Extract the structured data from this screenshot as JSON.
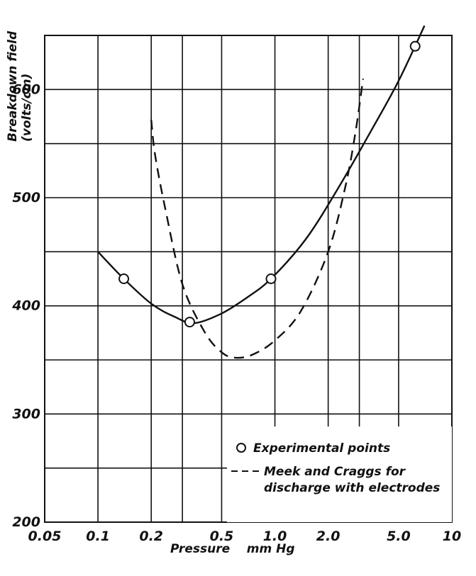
{
  "chart_data": {
    "type": "line",
    "xscale": "log",
    "xlim": [
      0.05,
      10
    ],
    "ylim": [
      200,
      650
    ],
    "grid": true,
    "xlabel": "Pressure    mm Hg",
    "ylabel": "Breakdown field\n(volts/cm)",
    "x_ticks": [
      {
        "value": 0.05,
        "label": "0.05"
      },
      {
        "value": 0.1,
        "label": "0.1"
      },
      {
        "value": 0.2,
        "label": "0.2"
      },
      {
        "value": 0.5,
        "label": "0.5"
      },
      {
        "value": 1.0,
        "label": "1.0"
      },
      {
        "value": 2.0,
        "label": "2.0"
      },
      {
        "value": 5.0,
        "label": "5.0"
      },
      {
        "value": 10,
        "label": "10"
      }
    ],
    "x_gridlines": [
      0.05,
      0.1,
      0.2,
      0.3,
      0.5,
      1.0,
      2.0,
      3.0,
      5.0,
      10
    ],
    "y_ticks": [
      {
        "value": 200,
        "label": "200"
      },
      {
        "value": 300,
        "label": "300"
      },
      {
        "value": 400,
        "label": "400"
      },
      {
        "value": 500,
        "label": "500"
      },
      {
        "value": 600,
        "label": "600"
      }
    ],
    "y_gridlines": [
      200,
      250,
      300,
      350,
      400,
      450,
      500,
      550,
      600,
      650
    ],
    "series": [
      {
        "name": "Experimental points",
        "style": "markers",
        "points": [
          {
            "x": 0.14,
            "y": 425
          },
          {
            "x": 0.33,
            "y": 385
          },
          {
            "x": 0.95,
            "y": 425
          },
          {
            "x": 6.2,
            "y": 640
          }
        ]
      },
      {
        "name": "Experimental points",
        "style": "solid-curve",
        "points": [
          {
            "x": 0.1,
            "y": 450
          },
          {
            "x": 0.14,
            "y": 425
          },
          {
            "x": 0.2,
            "y": 402
          },
          {
            "x": 0.27,
            "y": 390
          },
          {
            "x": 0.35,
            "y": 384
          },
          {
            "x": 0.5,
            "y": 393
          },
          {
            "x": 0.7,
            "y": 408
          },
          {
            "x": 0.95,
            "y": 425
          },
          {
            "x": 1.5,
            "y": 462
          },
          {
            "x": 2.3,
            "y": 510
          },
          {
            "x": 3.5,
            "y": 562
          },
          {
            "x": 5.0,
            "y": 608
          },
          {
            "x": 7.0,
            "y": 659
          }
        ]
      },
      {
        "name": "Meek and Craggs for discharge with electrodes",
        "style": "dashed-curve",
        "points": [
          {
            "x": 0.2,
            "y": 572
          },
          {
            "x": 0.21,
            "y": 540
          },
          {
            "x": 0.24,
            "y": 490
          },
          {
            "x": 0.3,
            "y": 420
          },
          {
            "x": 0.4,
            "y": 376
          },
          {
            "x": 0.5,
            "y": 357
          },
          {
            "x": 0.6,
            "y": 352
          },
          {
            "x": 0.75,
            "y": 355
          },
          {
            "x": 1.0,
            "y": 368
          },
          {
            "x": 1.4,
            "y": 395
          },
          {
            "x": 2.0,
            "y": 450
          },
          {
            "x": 2.5,
            "y": 510
          },
          {
            "x": 2.85,
            "y": 560
          },
          {
            "x": 3.15,
            "y": 610
          }
        ]
      }
    ],
    "legend": {
      "position": "bottom-right",
      "entries": [
        {
          "symbol": "circle",
          "label": "Experimental points"
        },
        {
          "symbol": "dashed-line",
          "label": "Meek and Craggs for"
        },
        {
          "symbol": "none",
          "label": "discharge with electrodes"
        }
      ]
    }
  }
}
